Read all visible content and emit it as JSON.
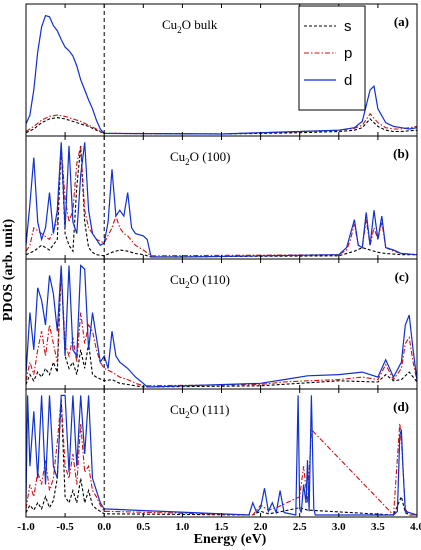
{
  "chart_data": {
    "type": "line",
    "xlabel": "Energy (eV)",
    "ylabel": "PDOS (arb. unit)",
    "xlim": [
      -1.0,
      4.0
    ],
    "xticks": [
      "-1.0",
      "-0.5",
      "0.0",
      "0.5",
      "1.0",
      "1.5",
      "2.0",
      "2.5",
      "3.0",
      "3.5",
      "4.0"
    ],
    "fermi_level": 0.0,
    "legend": {
      "placement": "top-right",
      "entries": [
        "s",
        "p",
        "d"
      ]
    },
    "series_colors": {
      "s": "#000000",
      "p": "#d01010",
      "d": "#1030d0"
    },
    "panels": [
      {
        "title_main": "Cu",
        "title_sub": "2",
        "title_rest": "O bulk",
        "label": "(a)",
        "ylim": [
          0,
          10
        ],
        "series": [
          {
            "name": "s",
            "x": [
              -1.0,
              -0.9,
              -0.8,
              -0.7,
              -0.6,
              -0.5,
              -0.4,
              -0.3,
              -0.2,
              -0.1,
              0.0,
              1.5,
              2.0,
              2.5,
              3.0,
              3.2,
              3.3,
              3.4,
              3.5,
              3.6,
              3.7,
              3.8,
              3.9,
              4.0
            ],
            "y": [
              0.1,
              0.4,
              0.9,
              1.2,
              1.3,
              1.2,
              1.0,
              0.8,
              0.6,
              0.3,
              0.05,
              0.0,
              0.05,
              0.1,
              0.2,
              0.3,
              0.5,
              1.2,
              0.6,
              0.3,
              0.2,
              0.2,
              0.25,
              0.3
            ]
          },
          {
            "name": "p",
            "x": [
              -1.0,
              -0.9,
              -0.8,
              -0.7,
              -0.6,
              -0.5,
              -0.4,
              -0.3,
              -0.2,
              -0.1,
              0.0,
              1.5,
              2.0,
              2.5,
              3.0,
              3.2,
              3.3,
              3.4,
              3.5,
              3.6,
              3.7,
              3.8,
              3.9,
              4.0
            ],
            "y": [
              0.2,
              0.6,
              1.1,
              1.4,
              1.5,
              1.4,
              1.2,
              1.0,
              0.7,
              0.4,
              0.05,
              0.0,
              0.1,
              0.2,
              0.3,
              0.45,
              0.7,
              1.6,
              0.9,
              0.5,
              0.4,
              0.4,
              0.5,
              0.6
            ]
          },
          {
            "name": "d",
            "x": [
              -1.0,
              -0.95,
              -0.9,
              -0.85,
              -0.8,
              -0.75,
              -0.7,
              -0.65,
              -0.6,
              -0.55,
              -0.5,
              -0.45,
              -0.4,
              -0.35,
              -0.3,
              -0.25,
              -0.2,
              -0.15,
              -0.1,
              -0.05,
              0.0,
              1.5,
              2.0,
              2.5,
              3.0,
              3.2,
              3.3,
              3.4,
              3.45,
              3.5,
              3.6,
              3.7,
              3.8,
              3.9,
              4.0
            ],
            "y": [
              0.8,
              1.5,
              3.5,
              6.5,
              8.5,
              9.4,
              9.3,
              8.6,
              8.2,
              7.5,
              6.9,
              6.6,
              6.2,
              5.4,
              4.3,
              3.5,
              2.7,
              2.0,
              1.1,
              0.4,
              0.05,
              0.0,
              0.1,
              0.2,
              0.3,
              0.5,
              1.0,
              3.5,
              3.8,
              2.0,
              0.9,
              0.6,
              0.5,
              0.4,
              0.5
            ]
          }
        ]
      },
      {
        "title_main": "Cu",
        "title_sub": "2",
        "title_rest": "O (100)",
        "label": "(b)",
        "ylim": [
          0,
          10
        ],
        "series": [
          {
            "name": "s",
            "x": [
              -1.0,
              -0.9,
              -0.8,
              -0.7,
              -0.6,
              -0.55,
              -0.5,
              -0.45,
              -0.4,
              -0.35,
              -0.3,
              -0.25,
              -0.2,
              -0.15,
              -0.1,
              0.0,
              0.1,
              0.2,
              0.3,
              0.4,
              0.5,
              0.6,
              3.0,
              3.2,
              3.3,
              3.4,
              3.5,
              3.6,
              3.8,
              4.0
            ],
            "y": [
              0.2,
              0.5,
              1.0,
              0.6,
              1.5,
              9.5,
              2.0,
              1.0,
              0.5,
              6.0,
              9.5,
              3.0,
              0.8,
              0.4,
              0.2,
              0.1,
              0.4,
              0.6,
              0.5,
              0.3,
              0.2,
              0.0,
              0.1,
              0.5,
              0.8,
              0.6,
              0.4,
              0.3,
              0.2,
              0.2
            ]
          },
          {
            "name": "p",
            "x": [
              -1.0,
              -0.95,
              -0.9,
              -0.8,
              -0.7,
              -0.6,
              -0.55,
              -0.5,
              -0.45,
              -0.4,
              -0.35,
              -0.3,
              -0.25,
              -0.2,
              -0.1,
              0.0,
              0.1,
              0.15,
              0.2,
              0.25,
              0.3,
              0.4,
              0.5,
              0.6,
              3.0,
              3.1,
              3.15,
              3.2,
              3.25,
              3.3,
              3.35,
              3.4,
              3.45,
              3.5,
              3.55,
              3.6,
              3.7,
              3.8,
              4.0
            ],
            "y": [
              0.5,
              1.0,
              2.5,
              2.0,
              1.5,
              3.0,
              9.5,
              5.0,
              3.0,
              4.0,
              8.0,
              9.5,
              4.0,
              2.5,
              1.5,
              1.2,
              2.5,
              3.5,
              2.5,
              2.0,
              1.8,
              1.0,
              0.6,
              0.1,
              0.2,
              0.6,
              1.5,
              2.8,
              1.0,
              0.8,
              3.2,
              1.0,
              2.5,
              1.5,
              3.0,
              0.8,
              0.5,
              0.3,
              0.2
            ]
          },
          {
            "name": "d",
            "x": [
              -1.0,
              -0.95,
              -0.9,
              -0.85,
              -0.8,
              -0.75,
              -0.7,
              -0.65,
              -0.6,
              -0.55,
              -0.5,
              -0.45,
              -0.4,
              -0.35,
              -0.3,
              -0.25,
              -0.2,
              -0.15,
              -0.1,
              -0.05,
              0.0,
              0.05,
              0.1,
              0.15,
              0.2,
              0.25,
              0.3,
              0.35,
              0.4,
              0.5,
              0.55,
              0.6,
              1.0,
              3.0,
              3.1,
              3.15,
              3.2,
              3.25,
              3.3,
              3.35,
              3.4,
              3.45,
              3.5,
              3.55,
              3.6,
              3.7,
              3.8,
              4.0
            ],
            "y": [
              1.0,
              4.5,
              8.5,
              3.0,
              1.5,
              2.5,
              5.5,
              2.0,
              4.0,
              9.8,
              2.5,
              9.5,
              3.0,
              2.0,
              7.0,
              9.8,
              4.0,
              2.0,
              1.5,
              1.0,
              1.2,
              3.0,
              7.5,
              3.5,
              4.0,
              3.5,
              5.5,
              2.5,
              2.0,
              1.8,
              1.5,
              0.0,
              0.0,
              0.2,
              0.8,
              2.0,
              3.2,
              1.0,
              0.8,
              3.8,
              1.0,
              4.0,
              1.5,
              3.5,
              0.8,
              0.6,
              0.3,
              0.2
            ]
          }
        ]
      },
      {
        "title_main": "Cu",
        "title_sub": "2",
        "title_rest": "O (110)",
        "label": "(c)",
        "ylim": [
          0,
          10
        ],
        "series": [
          {
            "name": "s",
            "x": [
              -1.0,
              -0.95,
              -0.9,
              -0.85,
              -0.8,
              -0.75,
              -0.7,
              -0.65,
              -0.6,
              -0.55,
              -0.5,
              -0.45,
              -0.4,
              -0.35,
              -0.3,
              -0.25,
              -0.2,
              -0.15,
              -0.1,
              0.0,
              0.1,
              0.2,
              0.3,
              0.4,
              0.5,
              2.0,
              2.5,
              3.0,
              3.5,
              3.6,
              3.7,
              3.8,
              3.9,
              4.0
            ],
            "y": [
              0.2,
              1.0,
              0.5,
              1.2,
              0.8,
              1.5,
              1.0,
              2.0,
              1.2,
              9.5,
              2.5,
              1.5,
              2.0,
              1.0,
              3.0,
              1.5,
              3.5,
              1.0,
              0.8,
              0.5,
              0.6,
              0.3,
              0.2,
              0.1,
              0.0,
              0.1,
              0.3,
              0.5,
              0.4,
              1.0,
              0.5,
              0.6,
              1.2,
              0.4
            ]
          },
          {
            "name": "p",
            "x": [
              -1.0,
              -0.95,
              -0.9,
              -0.85,
              -0.8,
              -0.75,
              -0.7,
              -0.65,
              -0.6,
              -0.55,
              -0.5,
              -0.45,
              -0.4,
              -0.35,
              -0.3,
              -0.25,
              -0.2,
              -0.15,
              -0.1,
              -0.05,
              0.0,
              0.1,
              0.2,
              0.3,
              0.4,
              0.5,
              2.0,
              2.3,
              2.6,
              3.0,
              3.3,
              3.5,
              3.6,
              3.7,
              3.8,
              3.85,
              3.9,
              3.95,
              4.0
            ],
            "y": [
              0.5,
              2.0,
              1.0,
              3.0,
              4.5,
              2.5,
              5.0,
              3.5,
              2.0,
              9.5,
              3.5,
              2.5,
              4.0,
              2.0,
              6.0,
              3.5,
              5.0,
              4.5,
              3.0,
              2.0,
              1.5,
              1.2,
              0.8,
              0.6,
              0.3,
              0.1,
              0.2,
              0.4,
              0.5,
              0.6,
              0.8,
              0.6,
              1.8,
              0.6,
              1.5,
              3.5,
              4.0,
              2.0,
              0.5
            ]
          },
          {
            "name": "d",
            "x": [
              -1.0,
              -0.95,
              -0.9,
              -0.85,
              -0.8,
              -0.75,
              -0.7,
              -0.65,
              -0.6,
              -0.55,
              -0.5,
              -0.45,
              -0.4,
              -0.35,
              -0.3,
              -0.25,
              -0.2,
              -0.15,
              -0.1,
              -0.05,
              0.0,
              0.05,
              0.1,
              0.15,
              0.2,
              0.3,
              0.4,
              0.5,
              0.55,
              2.0,
              2.3,
              2.6,
              3.0,
              3.3,
              3.5,
              3.6,
              3.7,
              3.8,
              3.85,
              3.9,
              3.95,
              4.0
            ],
            "y": [
              1.0,
              6.0,
              3.0,
              8.0,
              7.0,
              5.0,
              9.0,
              7.5,
              4.5,
              9.8,
              2.5,
              9.8,
              3.0,
              2.5,
              9.8,
              9.5,
              3.0,
              6.0,
              4.0,
              2.0,
              2.5,
              1.5,
              4.5,
              2.5,
              2.0,
              1.5,
              0.8,
              0.3,
              0.0,
              0.3,
              0.6,
              0.9,
              1.0,
              1.2,
              0.8,
              2.2,
              0.8,
              2.0,
              5.0,
              5.8,
              3.0,
              0.5
            ]
          }
        ]
      },
      {
        "title_main": "Cu",
        "title_sub": "2",
        "title_rest": "O (111)",
        "label": "(d)",
        "ylim": [
          0,
          10
        ],
        "series": [
          {
            "name": "s",
            "x": [
              -1.0,
              -0.95,
              -0.9,
              -0.85,
              -0.8,
              -0.75,
              -0.7,
              -0.65,
              -0.6,
              -0.55,
              -0.5,
              -0.45,
              -0.4,
              -0.35,
              -0.3,
              -0.25,
              -0.2,
              -0.15,
              -0.1,
              -0.05,
              0.0,
              1.9,
              2.0,
              2.1,
              2.2,
              2.5,
              2.6,
              3.7,
              3.8,
              3.85,
              3.9,
              4.0
            ],
            "y": [
              0.2,
              0.8,
              0.4,
              1.0,
              0.5,
              1.5,
              0.6,
              1.2,
              3.0,
              9.5,
              1.5,
              1.0,
              2.0,
              1.0,
              3.0,
              1.0,
              2.0,
              0.8,
              0.5,
              0.3,
              0.1,
              0.0,
              0.3,
              0.1,
              0.2,
              0.6,
              0.4,
              0.0,
              1.5,
              0.2,
              0.0,
              0.0
            ]
          },
          {
            "name": "p",
            "x": [
              -1.0,
              -0.95,
              -0.9,
              -0.85,
              -0.8,
              -0.75,
              -0.7,
              -0.65,
              -0.6,
              -0.55,
              -0.5,
              -0.45,
              -0.4,
              -0.35,
              -0.3,
              -0.25,
              -0.2,
              -0.15,
              -0.1,
              -0.05,
              0.0,
              1.9,
              2.0,
              2.1,
              2.2,
              2.5,
              2.55,
              2.6,
              2.65,
              3.7,
              3.78,
              3.8,
              3.85,
              3.9,
              4.0
            ],
            "y": [
              0.5,
              2.5,
              1.5,
              3.5,
              2.5,
              4.5,
              2.0,
              3.0,
              6.0,
              9.5,
              4.0,
              3.0,
              5.0,
              2.5,
              7.5,
              3.5,
              4.0,
              2.0,
              1.5,
              0.8,
              0.3,
              0.0,
              0.8,
              0.4,
              0.6,
              1.5,
              4.0,
              1.0,
              7.0,
              0.0,
              7.5,
              6.0,
              0.5,
              0.0,
              0.0
            ]
          },
          {
            "name": "d",
            "x": [
              -1.0,
              -0.98,
              -0.95,
              -0.9,
              -0.85,
              -0.8,
              -0.75,
              -0.7,
              -0.65,
              -0.6,
              -0.55,
              -0.5,
              -0.45,
              -0.4,
              -0.35,
              -0.3,
              -0.25,
              -0.2,
              -0.15,
              -0.1,
              -0.05,
              0.0,
              1.85,
              1.9,
              1.95,
              2.0,
              2.05,
              2.1,
              2.15,
              2.2,
              2.25,
              2.3,
              2.45,
              2.48,
              2.5,
              2.52,
              2.55,
              2.58,
              2.6,
              2.62,
              2.65,
              2.68,
              2.7,
              3.7,
              3.75,
              3.78,
              3.8,
              3.82,
              3.85,
              4.0
            ],
            "y": [
              1.0,
              9.8,
              4.0,
              8.5,
              3.0,
              9.8,
              2.5,
              9.8,
              4.0,
              3.0,
              9.8,
              9.8,
              3.5,
              9.8,
              4.0,
              9.8,
              5.0,
              9.8,
              3.0,
              2.0,
              1.0,
              0.5,
              0.0,
              1.0,
              0.2,
              0.6,
              2.2,
              0.3,
              1.0,
              0.2,
              2.0,
              0.2,
              0.0,
              9.8,
              0.5,
              0.2,
              2.5,
              1.0,
              4.5,
              0.3,
              9.8,
              0.5,
              0.0,
              0.0,
              0.3,
              6.5,
              7.0,
              4.0,
              0.3,
              0.0
            ]
          }
        ]
      }
    ]
  }
}
